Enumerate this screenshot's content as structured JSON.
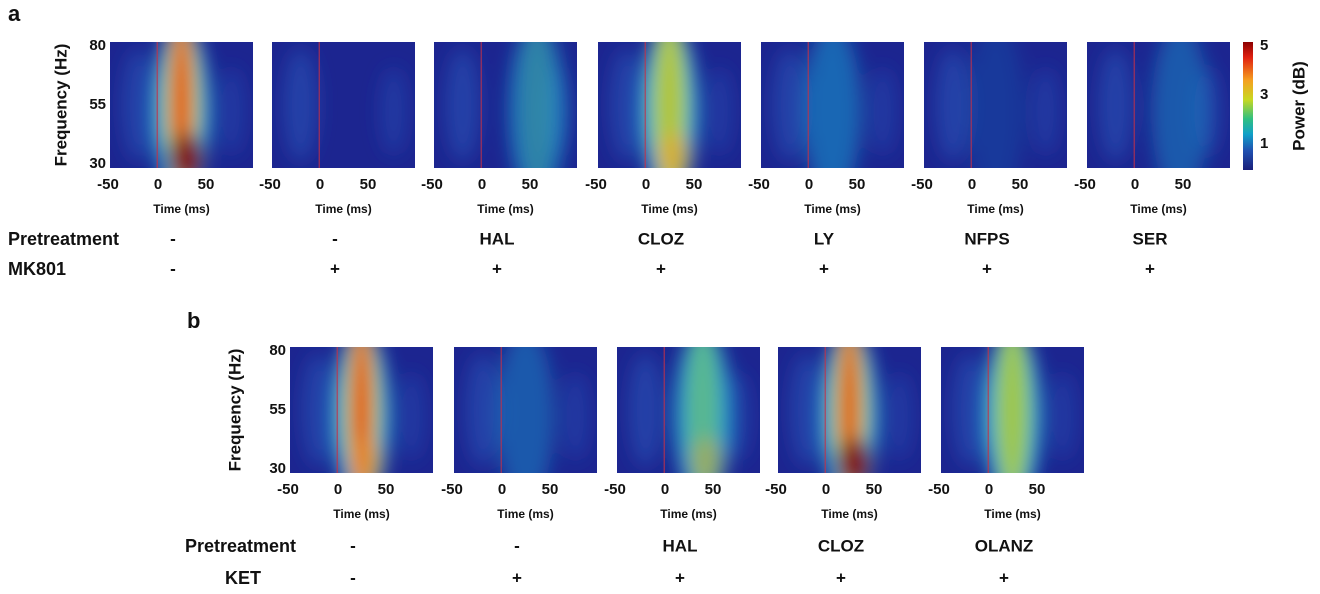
{
  "colorbar": {
    "label": "Power (dB)",
    "ticks": [
      "5",
      "3",
      "1"
    ]
  },
  "panel_a": {
    "letter": "a",
    "y_label": "Frequency (Hz)",
    "y_ticks": [
      "80",
      "55",
      "30"
    ],
    "x_ticks": [
      "-50",
      "0",
      "50"
    ],
    "x_label": "Time (ms)",
    "row_labels": [
      "Pretreatment",
      "MK801"
    ],
    "columns": [
      {
        "pretreatment": "-",
        "treatment": "-"
      },
      {
        "pretreatment": "-",
        "treatment": "+"
      },
      {
        "pretreatment": "HAL",
        "treatment": "+"
      },
      {
        "pretreatment": "CLOZ",
        "treatment": "+"
      },
      {
        "pretreatment": "LY",
        "treatment": "+"
      },
      {
        "pretreatment": "NFPS",
        "treatment": "+"
      },
      {
        "pretreatment": "SER",
        "treatment": "+"
      }
    ]
  },
  "panel_b": {
    "letter": "b",
    "y_label": "Frequency (Hz)",
    "y_ticks": [
      "80",
      "55",
      "30"
    ],
    "x_ticks": [
      "-50",
      "0",
      "50"
    ],
    "x_label": "Time (ms)",
    "row_labels": [
      "Pretreatment",
      "KET"
    ],
    "columns": [
      {
        "pretreatment": "-",
        "treatment": "-"
      },
      {
        "pretreatment": "-",
        "treatment": "+"
      },
      {
        "pretreatment": "HAL",
        "treatment": "+"
      },
      {
        "pretreatment": "CLOZ",
        "treatment": "+"
      },
      {
        "pretreatment": "OLANZ",
        "treatment": "+"
      }
    ]
  }
}
